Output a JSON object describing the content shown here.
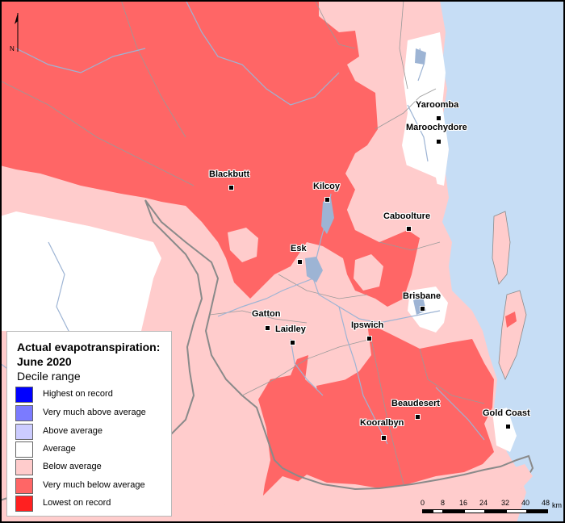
{
  "legend": {
    "title": "Actual evapotranspiration: June 2020",
    "subtitle": "Decile range",
    "items": [
      {
        "label": "Highest on record",
        "color": "#0000ff"
      },
      {
        "label": "Very much above average",
        "color": "#7b7bff"
      },
      {
        "label": "Above average",
        "color": "#ccccff"
      },
      {
        "label": "Average",
        "color": "#ffffff"
      },
      {
        "label": "Below average",
        "color": "#ffcccc"
      },
      {
        "label": "Very much below average",
        "color": "#ff6666"
      },
      {
        "label": "Lowest on record",
        "color": "#ff2020"
      }
    ]
  },
  "towns": [
    {
      "name": "Yaroomba"
    },
    {
      "name": "Maroochydore"
    },
    {
      "name": "Blackbutt"
    },
    {
      "name": "Kilcoy"
    },
    {
      "name": "Caboolture"
    },
    {
      "name": "Esk"
    },
    {
      "name": "Gatton"
    },
    {
      "name": "Laidley"
    },
    {
      "name": "Ipswich"
    },
    {
      "name": "Brisbane"
    },
    {
      "name": "Beaudesert"
    },
    {
      "name": "Kooralbyn"
    },
    {
      "name": "Gold Coast"
    }
  ],
  "north_arrow": {
    "letter": "N"
  },
  "scale_bar": {
    "unit": "km",
    "ticks": [
      "0",
      "8",
      "16",
      "24",
      "32",
      "40",
      "48"
    ]
  },
  "colors": {
    "ocean": "#c6ddf5",
    "river": "#9db4d4",
    "boundary": "#8a8a8a"
  }
}
